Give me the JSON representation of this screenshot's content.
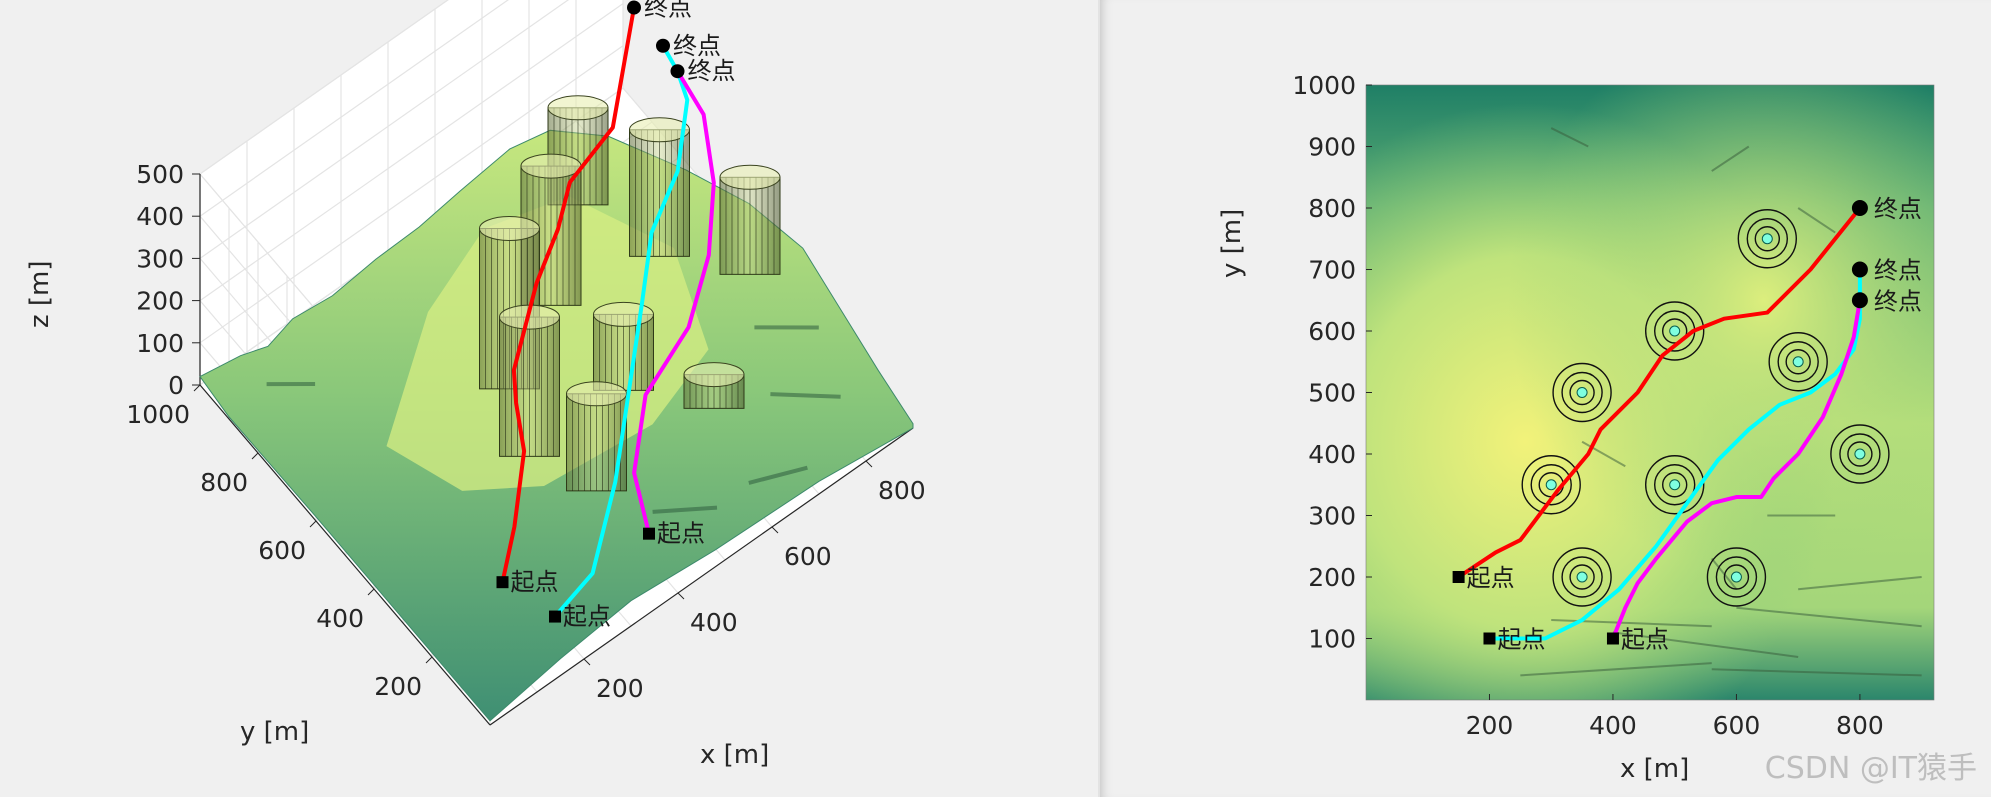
{
  "chart_data": [
    {
      "type": "surface3d",
      "title": "",
      "xlabel": "x [m]",
      "ylabel": "y [m]",
      "zlabel": "z [m]",
      "xlim": [
        0,
        900
      ],
      "ylim": [
        0,
        1000
      ],
      "zlim": [
        0,
        500
      ],
      "x_ticks": [
        "200",
        "400",
        "600",
        "800"
      ],
      "y_ticks": [
        "200",
        "400",
        "600",
        "800",
        "1000"
      ],
      "z_ticks": [
        "0",
        "100",
        "200",
        "300",
        "400",
        "500"
      ],
      "grid": true,
      "colormap": "summer",
      "obstacles": [
        {
          "x": 350,
          "y": 200,
          "r": 40,
          "h": 350
        },
        {
          "x": 300,
          "y": 350,
          "r": 40,
          "h": 450
        },
        {
          "x": 350,
          "y": 500,
          "r": 40,
          "h": 500
        },
        {
          "x": 500,
          "y": 350,
          "r": 40,
          "h": 300
        },
        {
          "x": 500,
          "y": 600,
          "r": 40,
          "h": 450
        },
        {
          "x": 600,
          "y": 200,
          "r": 40,
          "h": 200
        },
        {
          "x": 650,
          "y": 750,
          "r": 40,
          "h": 350
        },
        {
          "x": 700,
          "y": 550,
          "r": 40,
          "h": 420
        },
        {
          "x": 800,
          "y": 400,
          "r": 40,
          "h": 350
        }
      ],
      "series": [
        {
          "color": "#ff0000",
          "start_label": "起点",
          "end_label": "终点",
          "points": [
            [
              150,
              200,
              60
            ],
            [
              200,
              240,
              120
            ],
            [
              270,
              320,
              180
            ],
            [
              290,
              380,
              230
            ],
            [
              310,
              420,
              260
            ],
            [
              420,
              520,
              300
            ],
            [
              490,
              560,
              340
            ],
            [
              540,
              600,
              380
            ],
            [
              650,
              630,
              400
            ],
            [
              800,
              800,
              430
            ]
          ]
        },
        {
          "color": "#00ffff",
          "start_label": "起点",
          "end_label": "终点",
          "points": [
            [
              200,
              100,
              20
            ],
            [
              280,
              100,
              60
            ],
            [
              390,
              200,
              110
            ],
            [
              480,
              300,
              170
            ],
            [
              570,
              400,
              230
            ],
            [
              640,
              480,
              280
            ],
            [
              720,
              520,
              330
            ],
            [
              790,
              600,
              380
            ],
            [
              800,
              650,
              400
            ],
            [
              800,
              700,
              420
            ]
          ]
        },
        {
          "color": "#ff00ff",
          "start_label": "起点",
          "end_label": "终点",
          "points": [
            [
              400,
              100,
              60
            ],
            [
              430,
              200,
              100
            ],
            [
              510,
              290,
              150
            ],
            [
              620,
              320,
              200
            ],
            [
              700,
              380,
              260
            ],
            [
              760,
              460,
              320
            ],
            [
              800,
              560,
              370
            ],
            [
              800,
              650,
              400
            ]
          ]
        }
      ]
    },
    {
      "type": "heatmap",
      "title": "",
      "xlabel": "x [m]",
      "ylabel": "y [m]",
      "xlim": [
        0,
        920
      ],
      "ylim": [
        0,
        1000
      ],
      "x_ticks": [
        "200",
        "400",
        "600",
        "800"
      ],
      "y_ticks": [
        "100",
        "200",
        "300",
        "400",
        "500",
        "600",
        "700",
        "800",
        "900",
        "1000"
      ],
      "colormap": "summer",
      "obstacles": [
        {
          "x": 350,
          "y": 200
        },
        {
          "x": 300,
          "y": 350
        },
        {
          "x": 350,
          "y": 500
        },
        {
          "x": 500,
          "y": 350
        },
        {
          "x": 500,
          "y": 600
        },
        {
          "x": 600,
          "y": 200
        },
        {
          "x": 650,
          "y": 750
        },
        {
          "x": 700,
          "y": 550
        },
        {
          "x": 800,
          "y": 400
        }
      ],
      "series": [
        {
          "color": "#ff0000",
          "start_label": "起点",
          "end_label": "终点",
          "points": [
            [
              150,
              200
            ],
            [
              180,
              220
            ],
            [
              210,
              240
            ],
            [
              250,
              260
            ],
            [
              280,
              300
            ],
            [
              310,
              340
            ],
            [
              360,
              400
            ],
            [
              380,
              440
            ],
            [
              440,
              500
            ],
            [
              480,
              560
            ],
            [
              530,
              600
            ],
            [
              580,
              620
            ],
            [
              650,
              630
            ],
            [
              720,
              700
            ],
            [
              800,
              800
            ]
          ]
        },
        {
          "color": "#00ffff",
          "start_label": "起点",
          "end_label": "终点",
          "points": [
            [
              200,
              100
            ],
            [
              240,
              100
            ],
            [
              290,
              100
            ],
            [
              350,
              130
            ],
            [
              410,
              180
            ],
            [
              470,
              250
            ],
            [
              520,
              320
            ],
            [
              570,
              390
            ],
            [
              620,
              440
            ],
            [
              670,
              480
            ],
            [
              720,
              500
            ],
            [
              760,
              530
            ],
            [
              790,
              570
            ],
            [
              800,
              620
            ],
            [
              800,
              700
            ]
          ]
        },
        {
          "color": "#ff00ff",
          "start_label": "起点",
          "end_label": "终点",
          "points": [
            [
              400,
              100
            ],
            [
              420,
              150
            ],
            [
              440,
              190
            ],
            [
              470,
              230
            ],
            [
              520,
              290
            ],
            [
              560,
              320
            ],
            [
              600,
              330
            ],
            [
              640,
              330
            ],
            [
              660,
              360
            ],
            [
              700,
              400
            ],
            [
              740,
              460
            ],
            [
              770,
              530
            ],
            [
              790,
              590
            ],
            [
              800,
              650
            ]
          ]
        }
      ]
    }
  ],
  "watermark": "CSDN @IT猿手"
}
